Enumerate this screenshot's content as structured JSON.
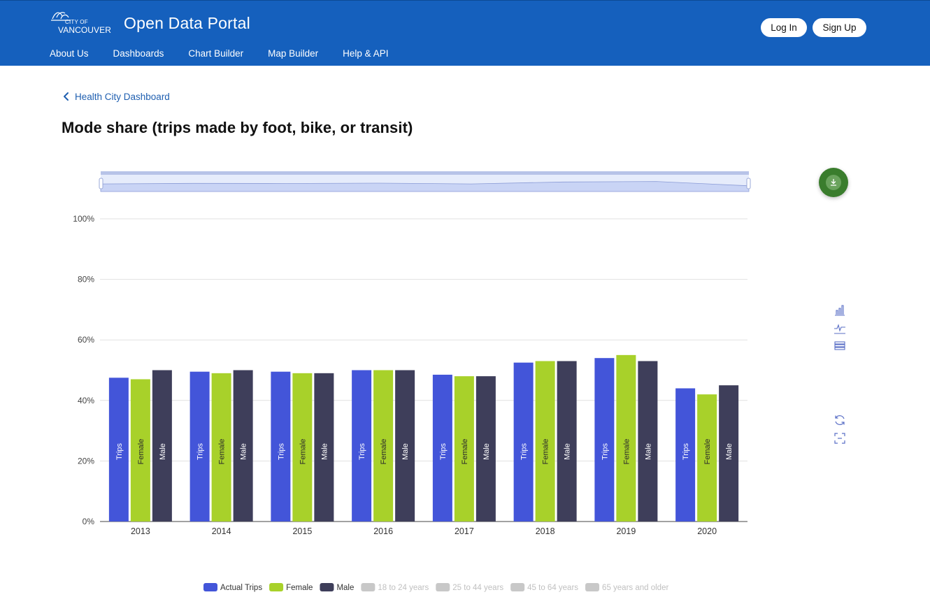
{
  "header": {
    "logo_small": "CITY OF",
    "logo_big": "VANCOUVER",
    "title": "Open Data Portal",
    "login_label": "Log In",
    "signup_label": "Sign Up",
    "nav": [
      "About Us",
      "Dashboards",
      "Chart Builder",
      "Map Builder",
      "Help & API"
    ]
  },
  "breadcrumb": {
    "label": "Health City Dashboard"
  },
  "page": {
    "title": "Mode share (trips made by foot, bike, or transit)"
  },
  "colors": {
    "brand": "#1560bd",
    "actual_trips": "#4355d9",
    "female": "#a8d12a",
    "male": "#3e3e5a",
    "inactive_legend": "#c8c8c8",
    "download": "#3a7d2d"
  },
  "icons": [
    "download-icon",
    "bar-chart-icon",
    "line-chart-icon",
    "table-icon",
    "refresh-icon",
    "fullscreen-icon",
    "chevron-left-icon"
  ],
  "chart_data": {
    "type": "bar",
    "title": "",
    "xlabel": "",
    "ylabel": "",
    "ylim": [
      0,
      100
    ],
    "yticks": [
      "0%",
      "20%",
      "40%",
      "60%",
      "80%",
      "100%"
    ],
    "grid": true,
    "legend_position": "bottom",
    "categories": [
      "2013",
      "2014",
      "2015",
      "2016",
      "2017",
      "2018",
      "2019",
      "2020"
    ],
    "series": [
      {
        "name": "Actual Trips",
        "bar_label": "Trips",
        "values": [
          47.5,
          49.5,
          49.5,
          50,
          48.5,
          52.5,
          54,
          44
        ],
        "active": true
      },
      {
        "name": "Female",
        "bar_label": "Female",
        "values": [
          47,
          49,
          49,
          50,
          48,
          53,
          55,
          42
        ],
        "active": true
      },
      {
        "name": "Male",
        "bar_label": "Male",
        "values": [
          50,
          50,
          49,
          50,
          48,
          53,
          53,
          45
        ],
        "active": true
      }
    ],
    "inactive_legend": [
      "18 to 24 years",
      "25 to 44 years",
      "45 to 64 years",
      "65 years and older"
    ]
  }
}
